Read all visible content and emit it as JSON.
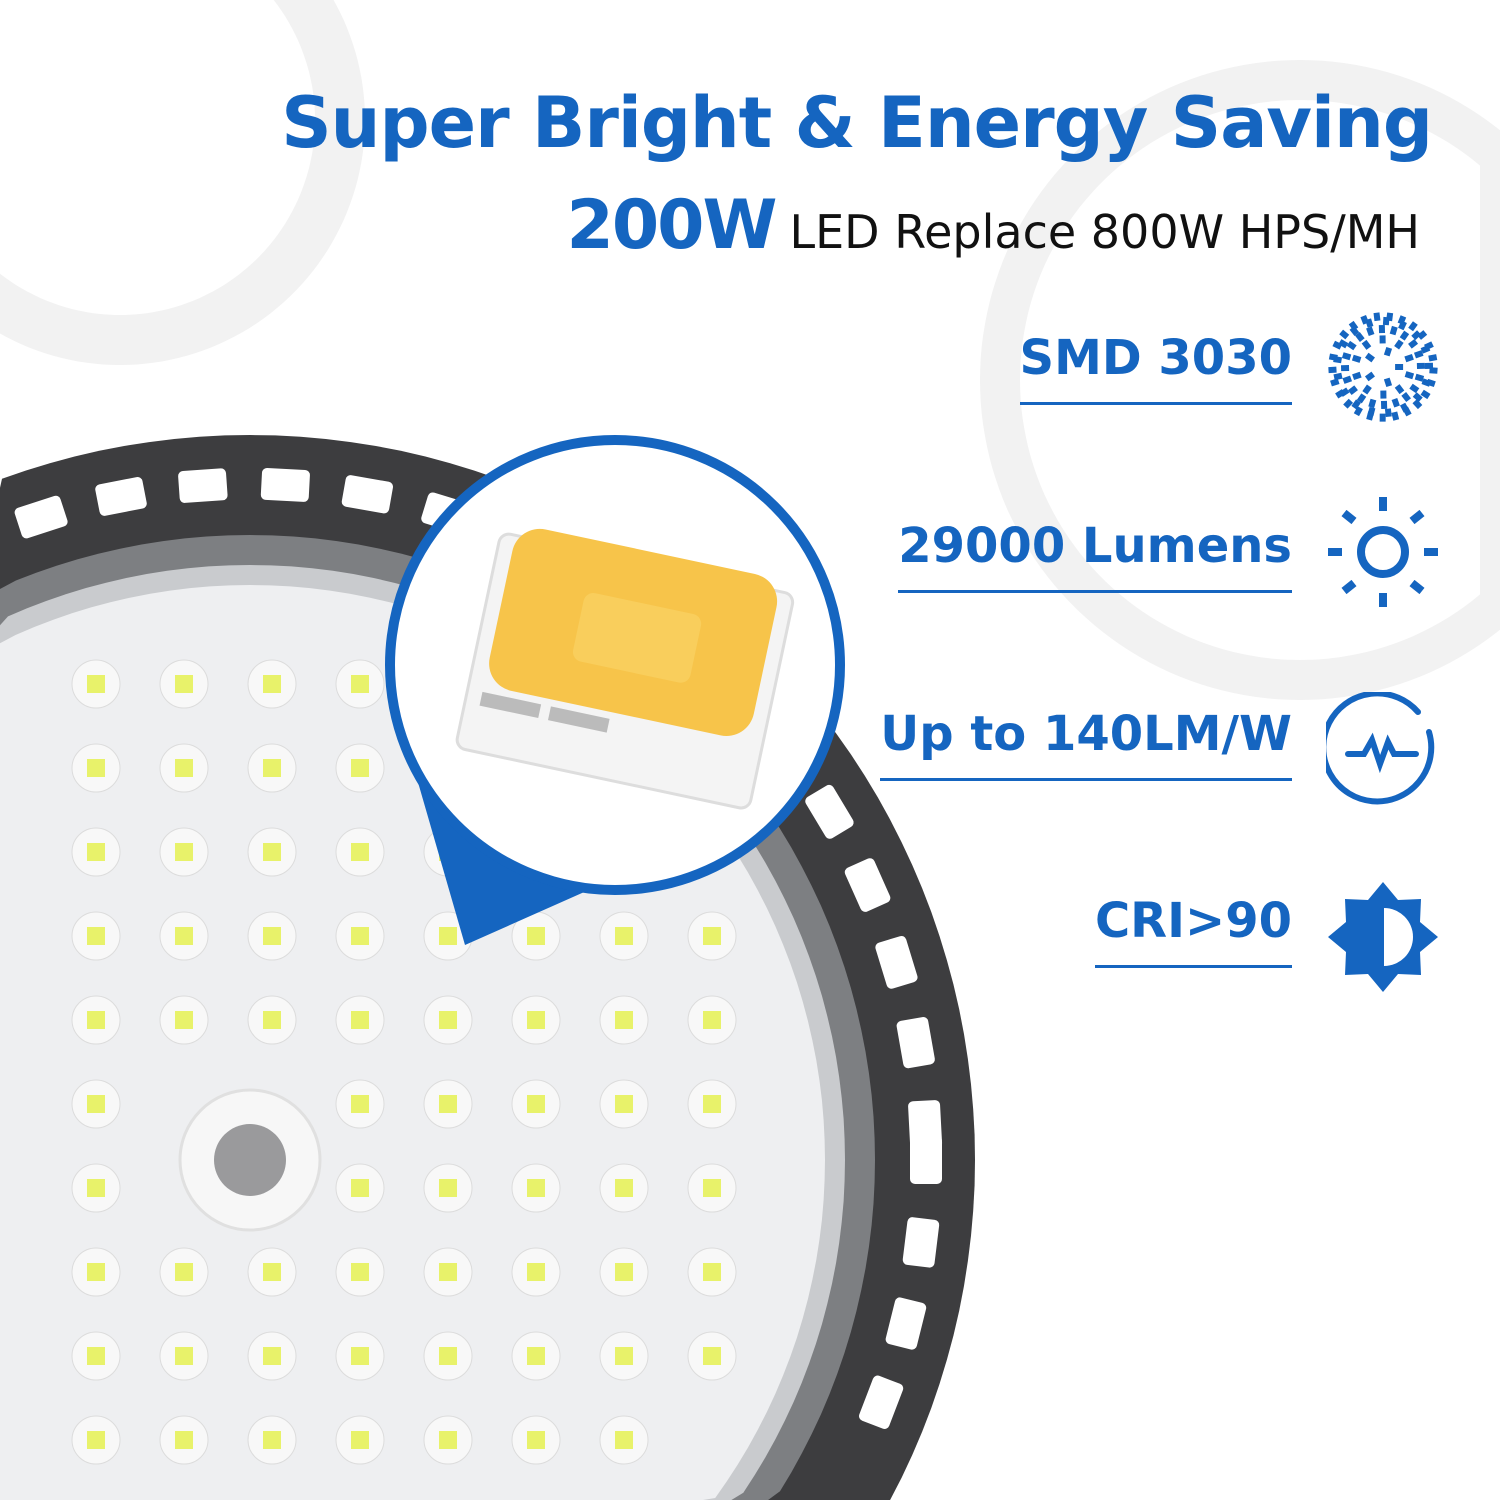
{
  "headline": "Super Bright & Energy Saving",
  "subheadline": {
    "power": "200W",
    "text": "LED Replace 800W HPS/MH"
  },
  "features": [
    {
      "label": "SMD 3030",
      "icon": "led-chip-dots-icon"
    },
    {
      "label": "29000 Lumens",
      "icon": "sun-icon"
    },
    {
      "label": "Up to 140LM/W",
      "icon": "efficiency-pulse-icon"
    },
    {
      "label": "CRI>90",
      "icon": "contrast-sun-icon"
    }
  ],
  "colors": {
    "accent": "#1565c0",
    "housing": "#3d3d3f",
    "chip": "#f7c44a"
  }
}
